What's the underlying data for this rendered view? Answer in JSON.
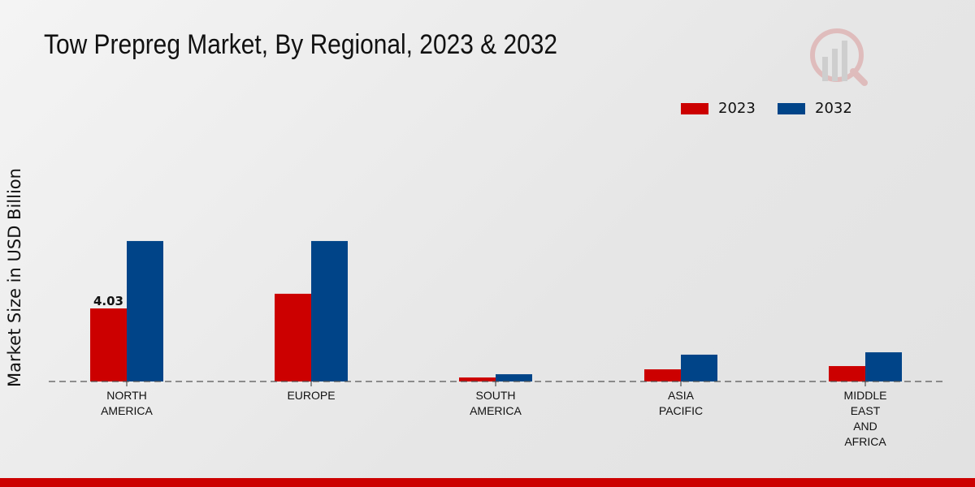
{
  "chart_data": {
    "type": "bar",
    "title": "Tow Prepreg Market, By Regional, 2023 & 2032",
    "xlabel": "",
    "ylabel": "Market Size in USD Billion",
    "categories": [
      [
        "NORTH",
        "AMERICA"
      ],
      [
        "EUROPE"
      ],
      [
        "SOUTH",
        "AMERICA"
      ],
      [
        "ASIA",
        "PACIFIC"
      ],
      [
        "MIDDLE",
        "EAST",
        "AND",
        "AFRICA"
      ]
    ],
    "series": [
      {
        "name": "2023",
        "color": "#cc0000",
        "values": [
          4.03,
          4.84,
          0.22,
          0.67,
          0.85
        ]
      },
      {
        "name": "2032",
        "color": "#004488",
        "values": [
          7.75,
          7.75,
          0.4,
          1.48,
          1.61
        ]
      }
    ],
    "data_labels": [
      {
        "series": 0,
        "index": 0,
        "text": "4.03"
      }
    ],
    "ylim": [
      0,
      9
    ],
    "grid": false,
    "legend_position": "top-right"
  }
}
